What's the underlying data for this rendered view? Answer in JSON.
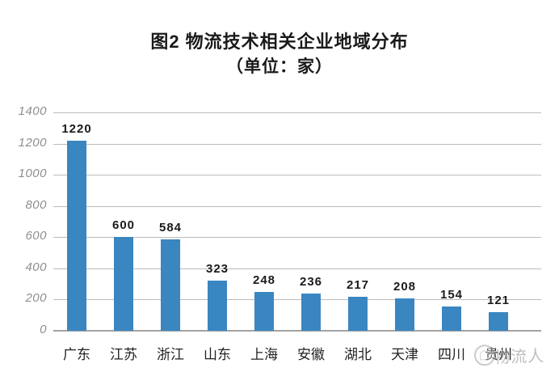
{
  "title": {
    "line1": "图2 物流技术相关企业地域分布",
    "line2": "（单位：家）"
  },
  "watermark": {
    "text": "物流人"
  },
  "chart_data": {
    "type": "bar",
    "title": "图2 物流技术相关企业地域分布",
    "subtitle": "（单位：家）",
    "categories": [
      "广东",
      "江苏",
      "浙江",
      "山东",
      "上海",
      "安徽",
      "湖北",
      "天津",
      "四川",
      "贵州"
    ],
    "values": [
      1220,
      600,
      584,
      323,
      248,
      236,
      217,
      208,
      154,
      121
    ],
    "xlabel": "",
    "ylabel": "",
    "ylim": [
      0,
      1400
    ],
    "yticks": [
      0,
      200,
      400,
      600,
      800,
      1000,
      1200,
      1400
    ],
    "grid": true,
    "legend": false,
    "data_labels": true,
    "bar_color": "#3a86c1",
    "gridline_color": "#bcbcbc",
    "axis_line_color": "#a3a3a3",
    "tick_label_color": "#8e8e8e",
    "data_label_color": "#1b1b1b"
  }
}
